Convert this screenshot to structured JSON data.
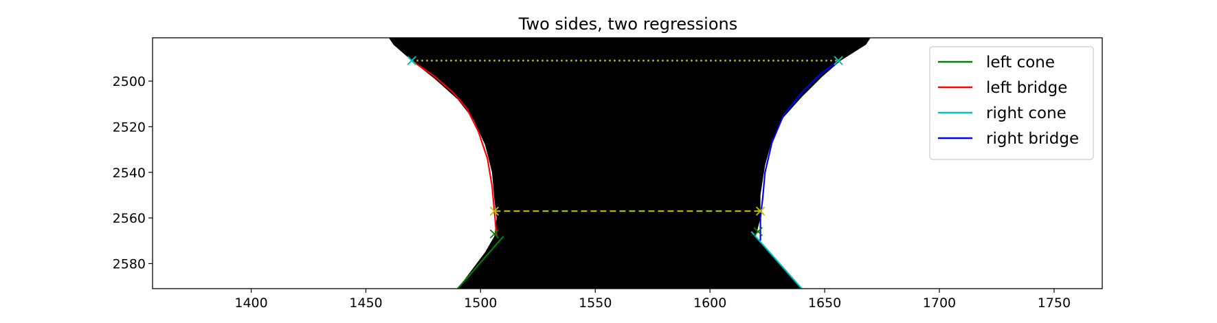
{
  "chart_data": {
    "type": "line",
    "title": "Two sides, two regressions",
    "xlabel": "",
    "ylabel": "",
    "xlim": [
      1357,
      1771
    ],
    "ylim": [
      2591,
      2481
    ],
    "y_inverted": true,
    "x_ticks": [
      1400,
      1450,
      1500,
      1550,
      1600,
      1650,
      1700,
      1750
    ],
    "y_ticks": [
      2500,
      2520,
      2540,
      2560,
      2580
    ],
    "grid": false,
    "legend_position": "upper right",
    "background_shape": {
      "description": "black hourglass silhouette",
      "fill": "#000000",
      "left_edge": [
        [
          1460,
          2481
        ],
        [
          1462,
          2484
        ],
        [
          1470,
          2491
        ],
        [
          1480,
          2499
        ],
        [
          1490,
          2508
        ],
        [
          1497,
          2517
        ],
        [
          1502,
          2528
        ],
        [
          1505,
          2540
        ],
        [
          1506,
          2552
        ],
        [
          1507,
          2560
        ],
        [
          1506,
          2568
        ],
        [
          1502,
          2575
        ],
        [
          1496,
          2583
        ],
        [
          1490,
          2591
        ]
      ],
      "right_edge": [
        [
          1670,
          2481
        ],
        [
          1668,
          2484
        ],
        [
          1657,
          2491
        ],
        [
          1649,
          2498
        ],
        [
          1640,
          2507
        ],
        [
          1632,
          2516
        ],
        [
          1627,
          2526
        ],
        [
          1624,
          2537
        ],
        [
          1622,
          2550
        ],
        [
          1622,
          2560
        ],
        [
          1620,
          2568
        ],
        [
          1626,
          2575
        ],
        [
          1632,
          2582
        ],
        [
          1640,
          2591
        ]
      ]
    },
    "series": [
      {
        "name": "left cone",
        "color": "#008000",
        "style": "solid",
        "points": [
          [
            1510,
            2568
          ],
          [
            1490,
            2591
          ]
        ]
      },
      {
        "name": "left bridge",
        "color": "#ff0000",
        "style": "solid",
        "points": [
          [
            1470,
            2491
          ],
          [
            1480,
            2498
          ],
          [
            1488,
            2505
          ],
          [
            1494,
            2512
          ],
          [
            1499,
            2522
          ],
          [
            1503,
            2534
          ],
          [
            1505,
            2546
          ],
          [
            1506,
            2557
          ],
          [
            1507,
            2568
          ]
        ]
      },
      {
        "name": "right cone",
        "color": "#00bfbf",
        "style": "solid",
        "points": [
          [
            1618,
            2566
          ],
          [
            1640,
            2591
          ]
        ]
      },
      {
        "name": "right bridge",
        "color": "#0000ff",
        "style": "solid",
        "points": [
          [
            1656,
            2491
          ],
          [
            1648,
            2497
          ],
          [
            1640,
            2505
          ],
          [
            1632,
            2515
          ],
          [
            1627,
            2527
          ],
          [
            1624,
            2540
          ],
          [
            1623,
            2551
          ],
          [
            1622,
            2560
          ],
          [
            1622,
            2570
          ]
        ]
      }
    ],
    "reference_lines": [
      {
        "style": "dotted",
        "color": "#bfbf00",
        "points": [
          [
            1470,
            2491
          ],
          [
            1656,
            2491
          ]
        ]
      },
      {
        "style": "dashed",
        "color": "#bfbf00",
        "points": [
          [
            1506,
            2557
          ],
          [
            1622,
            2557
          ]
        ]
      }
    ],
    "markers": [
      {
        "x": 1470,
        "y": 2491,
        "symbol": "x",
        "color": "#bfbf00"
      },
      {
        "x": 1656,
        "y": 2491,
        "symbol": "x",
        "color": "#bfbf00"
      },
      {
        "x": 1470,
        "y": 2491,
        "symbol": "x",
        "color": "#00bfbf"
      },
      {
        "x": 1656,
        "y": 2491,
        "symbol": "x",
        "color": "#00bfbf"
      },
      {
        "x": 1506,
        "y": 2557,
        "symbol": "x",
        "color": "#bfbf00"
      },
      {
        "x": 1622,
        "y": 2557,
        "symbol": "x",
        "color": "#bfbf00"
      },
      {
        "x": 1506,
        "y": 2567,
        "symbol": "x",
        "color": "#008000"
      },
      {
        "x": 1621,
        "y": 2566,
        "symbol": "x",
        "color": "#008000"
      }
    ]
  }
}
